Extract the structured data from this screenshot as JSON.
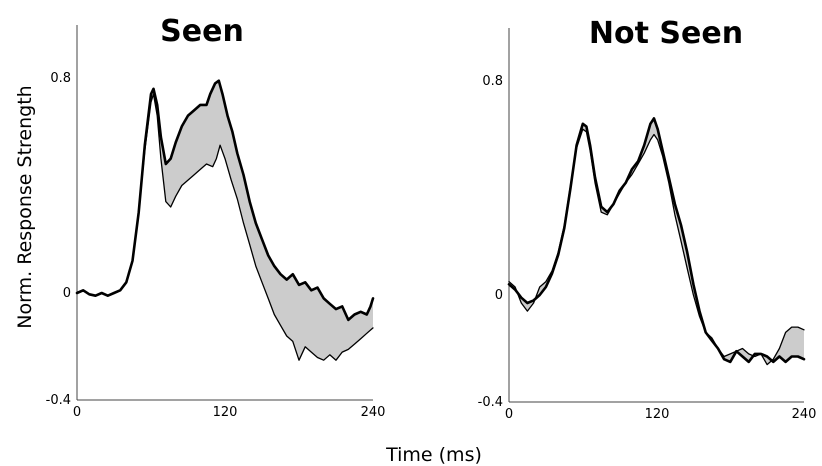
{
  "chart_data": [
    {
      "type": "line",
      "title": "Seen",
      "xlabel": "Time (ms)",
      "ylabel": "Norm. Response Strength",
      "xlim": [
        0,
        240
      ],
      "ylim": [
        -0.4,
        1.0
      ],
      "x_ticks": [
        "0",
        "120",
        "240"
      ],
      "y_ticks": [
        "0.8",
        "0",
        "-0.4"
      ],
      "grid": false,
      "fill_between_series": true,
      "fill_color": "#cccccc",
      "series": [
        {
          "line_width": 2.6,
          "points": [
            [
              0,
              0.0
            ],
            [
              5,
              0.01
            ],
            [
              10,
              -0.005
            ],
            [
              15,
              -0.01
            ],
            [
              20,
              0.0
            ],
            [
              25,
              -0.01
            ],
            [
              30,
              0.0
            ],
            [
              35,
              0.01
            ],
            [
              40,
              0.04
            ],
            [
              45,
              0.12
            ],
            [
              50,
              0.3
            ],
            [
              55,
              0.55
            ],
            [
              60,
              0.74
            ],
            [
              62,
              0.76
            ],
            [
              65,
              0.7
            ],
            [
              68,
              0.58
            ],
            [
              72,
              0.48
            ],
            [
              76,
              0.5
            ],
            [
              80,
              0.56
            ],
            [
              85,
              0.62
            ],
            [
              90,
              0.66
            ],
            [
              95,
              0.68
            ],
            [
              100,
              0.7
            ],
            [
              105,
              0.7
            ],
            [
              108,
              0.74
            ],
            [
              112,
              0.78
            ],
            [
              115,
              0.79
            ],
            [
              118,
              0.74
            ],
            [
              122,
              0.66
            ],
            [
              126,
              0.6
            ],
            [
              130,
              0.52
            ],
            [
              135,
              0.44
            ],
            [
              140,
              0.34
            ],
            [
              145,
              0.26
            ],
            [
              150,
              0.2
            ],
            [
              155,
              0.14
            ],
            [
              160,
              0.1
            ],
            [
              165,
              0.07
            ],
            [
              170,
              0.05
            ],
            [
              175,
              0.07
            ],
            [
              180,
              0.03
            ],
            [
              185,
              0.04
            ],
            [
              190,
              0.01
            ],
            [
              195,
              0.02
            ],
            [
              200,
              -0.02
            ],
            [
              205,
              -0.04
            ],
            [
              210,
              -0.06
            ],
            [
              215,
              -0.05
            ],
            [
              220,
              -0.1
            ],
            [
              225,
              -0.08
            ],
            [
              230,
              -0.07
            ],
            [
              235,
              -0.08
            ],
            [
              238,
              -0.05
            ],
            [
              240,
              -0.02
            ]
          ]
        },
        {
          "line_width": 1.3,
          "points": [
            [
              0,
              0.0
            ],
            [
              5,
              0.01
            ],
            [
              10,
              -0.005
            ],
            [
              15,
              -0.01
            ],
            [
              20,
              0.0
            ],
            [
              25,
              -0.01
            ],
            [
              30,
              0.0
            ],
            [
              35,
              0.01
            ],
            [
              40,
              0.04
            ],
            [
              45,
              0.12
            ],
            [
              50,
              0.3
            ],
            [
              55,
              0.53
            ],
            [
              60,
              0.71
            ],
            [
              62,
              0.74
            ],
            [
              65,
              0.66
            ],
            [
              68,
              0.5
            ],
            [
              72,
              0.34
            ],
            [
              76,
              0.32
            ],
            [
              80,
              0.36
            ],
            [
              85,
              0.4
            ],
            [
              90,
              0.42
            ],
            [
              95,
              0.44
            ],
            [
              100,
              0.46
            ],
            [
              105,
              0.48
            ],
            [
              110,
              0.47
            ],
            [
              113,
              0.5
            ],
            [
              116,
              0.55
            ],
            [
              120,
              0.5
            ],
            [
              125,
              0.42
            ],
            [
              130,
              0.35
            ],
            [
              135,
              0.26
            ],
            [
              140,
              0.18
            ],
            [
              145,
              0.1
            ],
            [
              150,
              0.04
            ],
            [
              155,
              -0.02
            ],
            [
              160,
              -0.08
            ],
            [
              165,
              -0.12
            ],
            [
              170,
              -0.16
            ],
            [
              175,
              -0.18
            ],
            [
              180,
              -0.25
            ],
            [
              185,
              -0.2
            ],
            [
              190,
              -0.22
            ],
            [
              195,
              -0.24
            ],
            [
              200,
              -0.25
            ],
            [
              205,
              -0.23
            ],
            [
              210,
              -0.25
            ],
            [
              215,
              -0.22
            ],
            [
              220,
              -0.21
            ],
            [
              225,
              -0.19
            ],
            [
              230,
              -0.17
            ],
            [
              235,
              -0.15
            ],
            [
              240,
              -0.13
            ]
          ]
        }
      ]
    },
    {
      "type": "line",
      "title": "Not Seen",
      "xlim": [
        0,
        240
      ],
      "ylim": [
        -0.4,
        1.0
      ],
      "x_ticks": [
        "0",
        "120",
        "240"
      ],
      "y_ticks": [
        "0.8",
        "0",
        "-0.4"
      ],
      "grid": false,
      "fill_between_series": true,
      "fill_color": "#cccccc",
      "series": [
        {
          "line_width": 2.6,
          "points": [
            [
              0,
              0.04
            ],
            [
              5,
              0.02
            ],
            [
              10,
              -0.01
            ],
            [
              15,
              -0.03
            ],
            [
              20,
              -0.02
            ],
            [
              25,
              0.0
            ],
            [
              30,
              0.03
            ],
            [
              35,
              0.08
            ],
            [
              40,
              0.15
            ],
            [
              45,
              0.25
            ],
            [
              50,
              0.4
            ],
            [
              55,
              0.56
            ],
            [
              60,
              0.64
            ],
            [
              63,
              0.63
            ],
            [
              66,
              0.56
            ],
            [
              70,
              0.44
            ],
            [
              75,
              0.33
            ],
            [
              80,
              0.31
            ],
            [
              85,
              0.34
            ],
            [
              90,
              0.39
            ],
            [
              95,
              0.42
            ],
            [
              100,
              0.47
            ],
            [
              105,
              0.5
            ],
            [
              110,
              0.56
            ],
            [
              115,
              0.64
            ],
            [
              118,
              0.66
            ],
            [
              121,
              0.62
            ],
            [
              125,
              0.54
            ],
            [
              130,
              0.44
            ],
            [
              135,
              0.34
            ],
            [
              140,
              0.26
            ],
            [
              145,
              0.16
            ],
            [
              150,
              0.04
            ],
            [
              155,
              -0.06
            ],
            [
              160,
              -0.14
            ],
            [
              165,
              -0.17
            ],
            [
              170,
              -0.2
            ],
            [
              175,
              -0.24
            ],
            [
              180,
              -0.25
            ],
            [
              185,
              -0.21
            ],
            [
              190,
              -0.23
            ],
            [
              195,
              -0.25
            ],
            [
              200,
              -0.22
            ],
            [
              205,
              -0.22
            ],
            [
              210,
              -0.23
            ],
            [
              215,
              -0.25
            ],
            [
              220,
              -0.23
            ],
            [
              225,
              -0.25
            ],
            [
              230,
              -0.23
            ],
            [
              235,
              -0.23
            ],
            [
              240,
              -0.24
            ]
          ]
        },
        {
          "line_width": 1.3,
          "points": [
            [
              0,
              0.05
            ],
            [
              5,
              0.03
            ],
            [
              10,
              -0.03
            ],
            [
              15,
              -0.06
            ],
            [
              20,
              -0.03
            ],
            [
              25,
              0.03
            ],
            [
              30,
              0.05
            ],
            [
              35,
              0.09
            ],
            [
              40,
              0.16
            ],
            [
              45,
              0.26
            ],
            [
              50,
              0.41
            ],
            [
              55,
              0.55
            ],
            [
              60,
              0.62
            ],
            [
              63,
              0.61
            ],
            [
              66,
              0.54
            ],
            [
              70,
              0.42
            ],
            [
              75,
              0.31
            ],
            [
              80,
              0.3
            ],
            [
              85,
              0.34
            ],
            [
              90,
              0.38
            ],
            [
              95,
              0.42
            ],
            [
              100,
              0.45
            ],
            [
              105,
              0.49
            ],
            [
              110,
              0.53
            ],
            [
              115,
              0.58
            ],
            [
              118,
              0.6
            ],
            [
              121,
              0.58
            ],
            [
              125,
              0.52
            ],
            [
              130,
              0.42
            ],
            [
              135,
              0.3
            ],
            [
              140,
              0.2
            ],
            [
              145,
              0.1
            ],
            [
              150,
              0.0
            ],
            [
              155,
              -0.08
            ],
            [
              160,
              -0.14
            ],
            [
              165,
              -0.16
            ],
            [
              170,
              -0.2
            ],
            [
              175,
              -0.23
            ],
            [
              180,
              -0.22
            ],
            [
              185,
              -0.21
            ],
            [
              190,
              -0.2
            ],
            [
              195,
              -0.22
            ],
            [
              200,
              -0.23
            ],
            [
              205,
              -0.22
            ],
            [
              210,
              -0.26
            ],
            [
              215,
              -0.24
            ],
            [
              220,
              -0.2
            ],
            [
              225,
              -0.14
            ],
            [
              230,
              -0.12
            ],
            [
              235,
              -0.12
            ],
            [
              240,
              -0.13
            ]
          ]
        }
      ]
    }
  ]
}
